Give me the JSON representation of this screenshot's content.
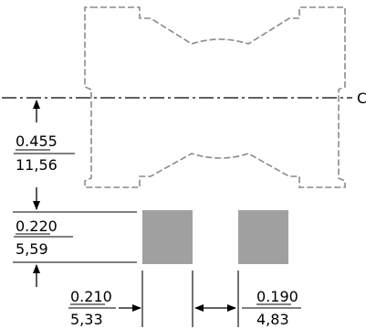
{
  "centerline": {
    "label": "C"
  },
  "dimensions": {
    "vertical_top": {
      "inches": "0.455",
      "mm": "11,56"
    },
    "pad_height": {
      "inches": "0.220",
      "mm": "5,59"
    },
    "pad_width": {
      "inches": "0.210",
      "mm": "5,33"
    },
    "pad_gap": {
      "inches": "0.190",
      "mm": "4,83"
    }
  },
  "colors": {
    "outline": "#8a8a8a",
    "pad_fill": "#a0a0a0",
    "line": "#000000"
  }
}
